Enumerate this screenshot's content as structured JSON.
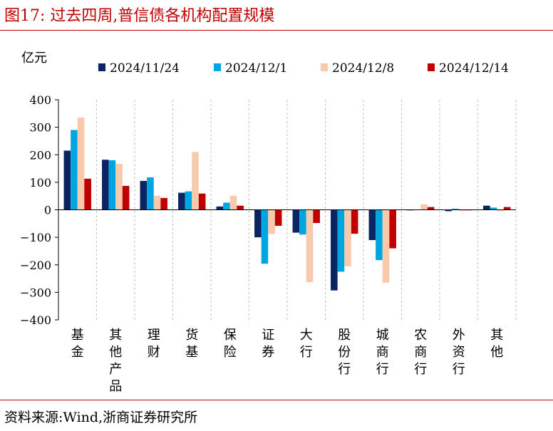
{
  "header": {
    "title": "图17:  过去四周,普信债各机构配置规模"
  },
  "footer": {
    "source": "资料来源:Wind,浙商证券研究所"
  },
  "colors": {
    "accent": "#c00000"
  },
  "chart_data": {
    "type": "bar",
    "title": "",
    "ylabel": "亿元",
    "xlabel": "",
    "ylim": [
      -400,
      400
    ],
    "yticks": [
      400,
      300,
      200,
      100,
      0,
      -100,
      -200,
      -300,
      -400
    ],
    "ytick_labels": [
      "400",
      "300",
      "200",
      "100",
      "0",
      "−100",
      "−200",
      "−300",
      "−400"
    ],
    "grid": "vertical-dashed",
    "legend": "top",
    "categories": [
      "基金",
      "其他产品",
      "理财",
      "货基",
      "保险",
      "证券",
      "大行",
      "股份行",
      "城商行",
      "农商行",
      "外资行",
      "其他"
    ],
    "series": [
      {
        "name": "2024/11/24",
        "color": "#0b2562",
        "values": [
          215,
          182,
          105,
          62,
          12,
          -100,
          -83,
          -293,
          -110,
          -2,
          -5,
          15
        ]
      },
      {
        "name": "2024/12/1",
        "color": "#00a6e2",
        "values": [
          290,
          180,
          118,
          67,
          26,
          -196,
          -90,
          -225,
          -183,
          1,
          4,
          8
        ]
      },
      {
        "name": "2024/12/8",
        "color": "#f8c9ab",
        "values": [
          335,
          167,
          51,
          210,
          51,
          -88,
          -263,
          -205,
          -265,
          20,
          -5,
          -5
        ]
      },
      {
        "name": "2024/12/14",
        "color": "#c00000",
        "values": [
          113,
          87,
          43,
          59,
          15,
          -58,
          -48,
          -87,
          -140,
          10,
          -2,
          10
        ]
      }
    ]
  }
}
